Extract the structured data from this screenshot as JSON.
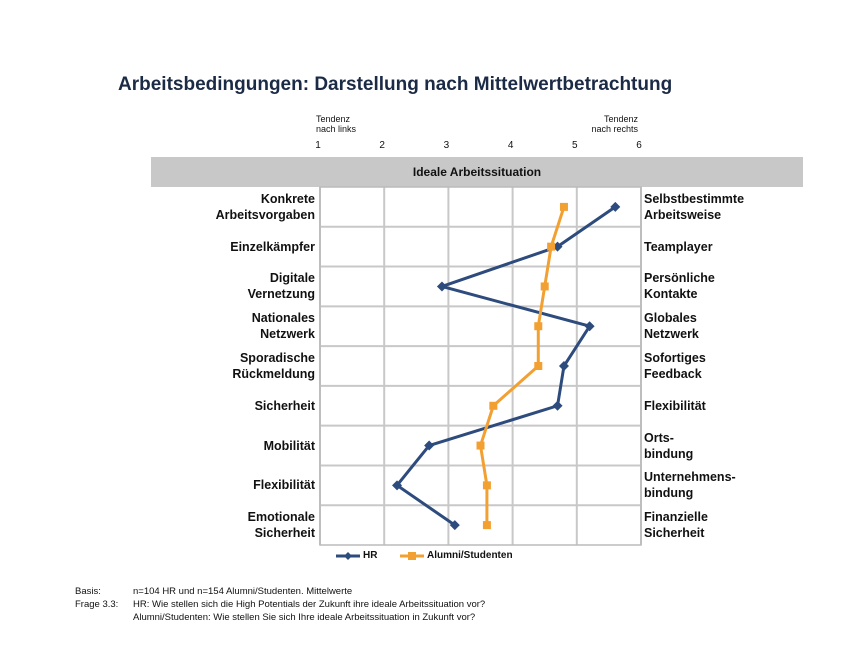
{
  "chart_data": {
    "type": "line",
    "orientation": "horizontal",
    "title": "Arbeitsbedingungen: Darstellung nach Mittelwertbetrachtung",
    "axis_note_left": "Tendenz\nnach links",
    "axis_note_right": "Tendenz\nnach rechts",
    "panel_title": "Ideale Arbeitssituation",
    "categories": [
      "Konkrete\nArbeitsvorgaben",
      "Einzelkämpfer",
      "Digitale\nVernetzung",
      "Nationales\nNetzwerk",
      "Sporadische\nRückmeldung",
      "Sicherheit",
      "Mobilität",
      "Flexibilität",
      "Emotionale\nSicherheit"
    ],
    "categories_right": [
      "Selbstbestimmte\nArbeitsweise",
      "Teamplayer",
      "Persönliche\nKontakte",
      "Globales\nNetzwerk",
      "Sofortiges\nFeedback",
      "Flexibilität",
      "Orts-\nbindung",
      "Unternehmens-\nbindung",
      "Finanzielle\nSicherheit"
    ],
    "series": [
      {
        "name": "HR",
        "color": "#2d4b7c",
        "marker": "diamond",
        "values": [
          5.6,
          4.7,
          2.9,
          5.2,
          4.8,
          4.7,
          2.7,
          2.2,
          3.1
        ]
      },
      {
        "name": "Alumni/Studenten",
        "color": "#f2a031",
        "marker": "square",
        "values": [
          4.8,
          4.6,
          4.5,
          4.4,
          4.4,
          3.7,
          3.5,
          3.6,
          3.6
        ]
      }
    ],
    "xlim": [
      1,
      6
    ],
    "xticks": [
      1,
      2,
      3,
      4,
      5,
      6
    ],
    "grid": true,
    "notes": [
      {
        "label": "Basis:",
        "lines": [
          "n=104 HR und n=154 Alumni/Studenten. Mittelwerte"
        ]
      },
      {
        "label": "Frage  3.3:",
        "lines": [
          "HR: Wie stellen sich die High Potentials der Zukunft ihre ideale Arbeitssituation vor?",
          "Alumni/Studenten: Wie stellen Sie sich Ihre ideale Arbeitssituation in Zukunft vor?"
        ]
      }
    ]
  }
}
